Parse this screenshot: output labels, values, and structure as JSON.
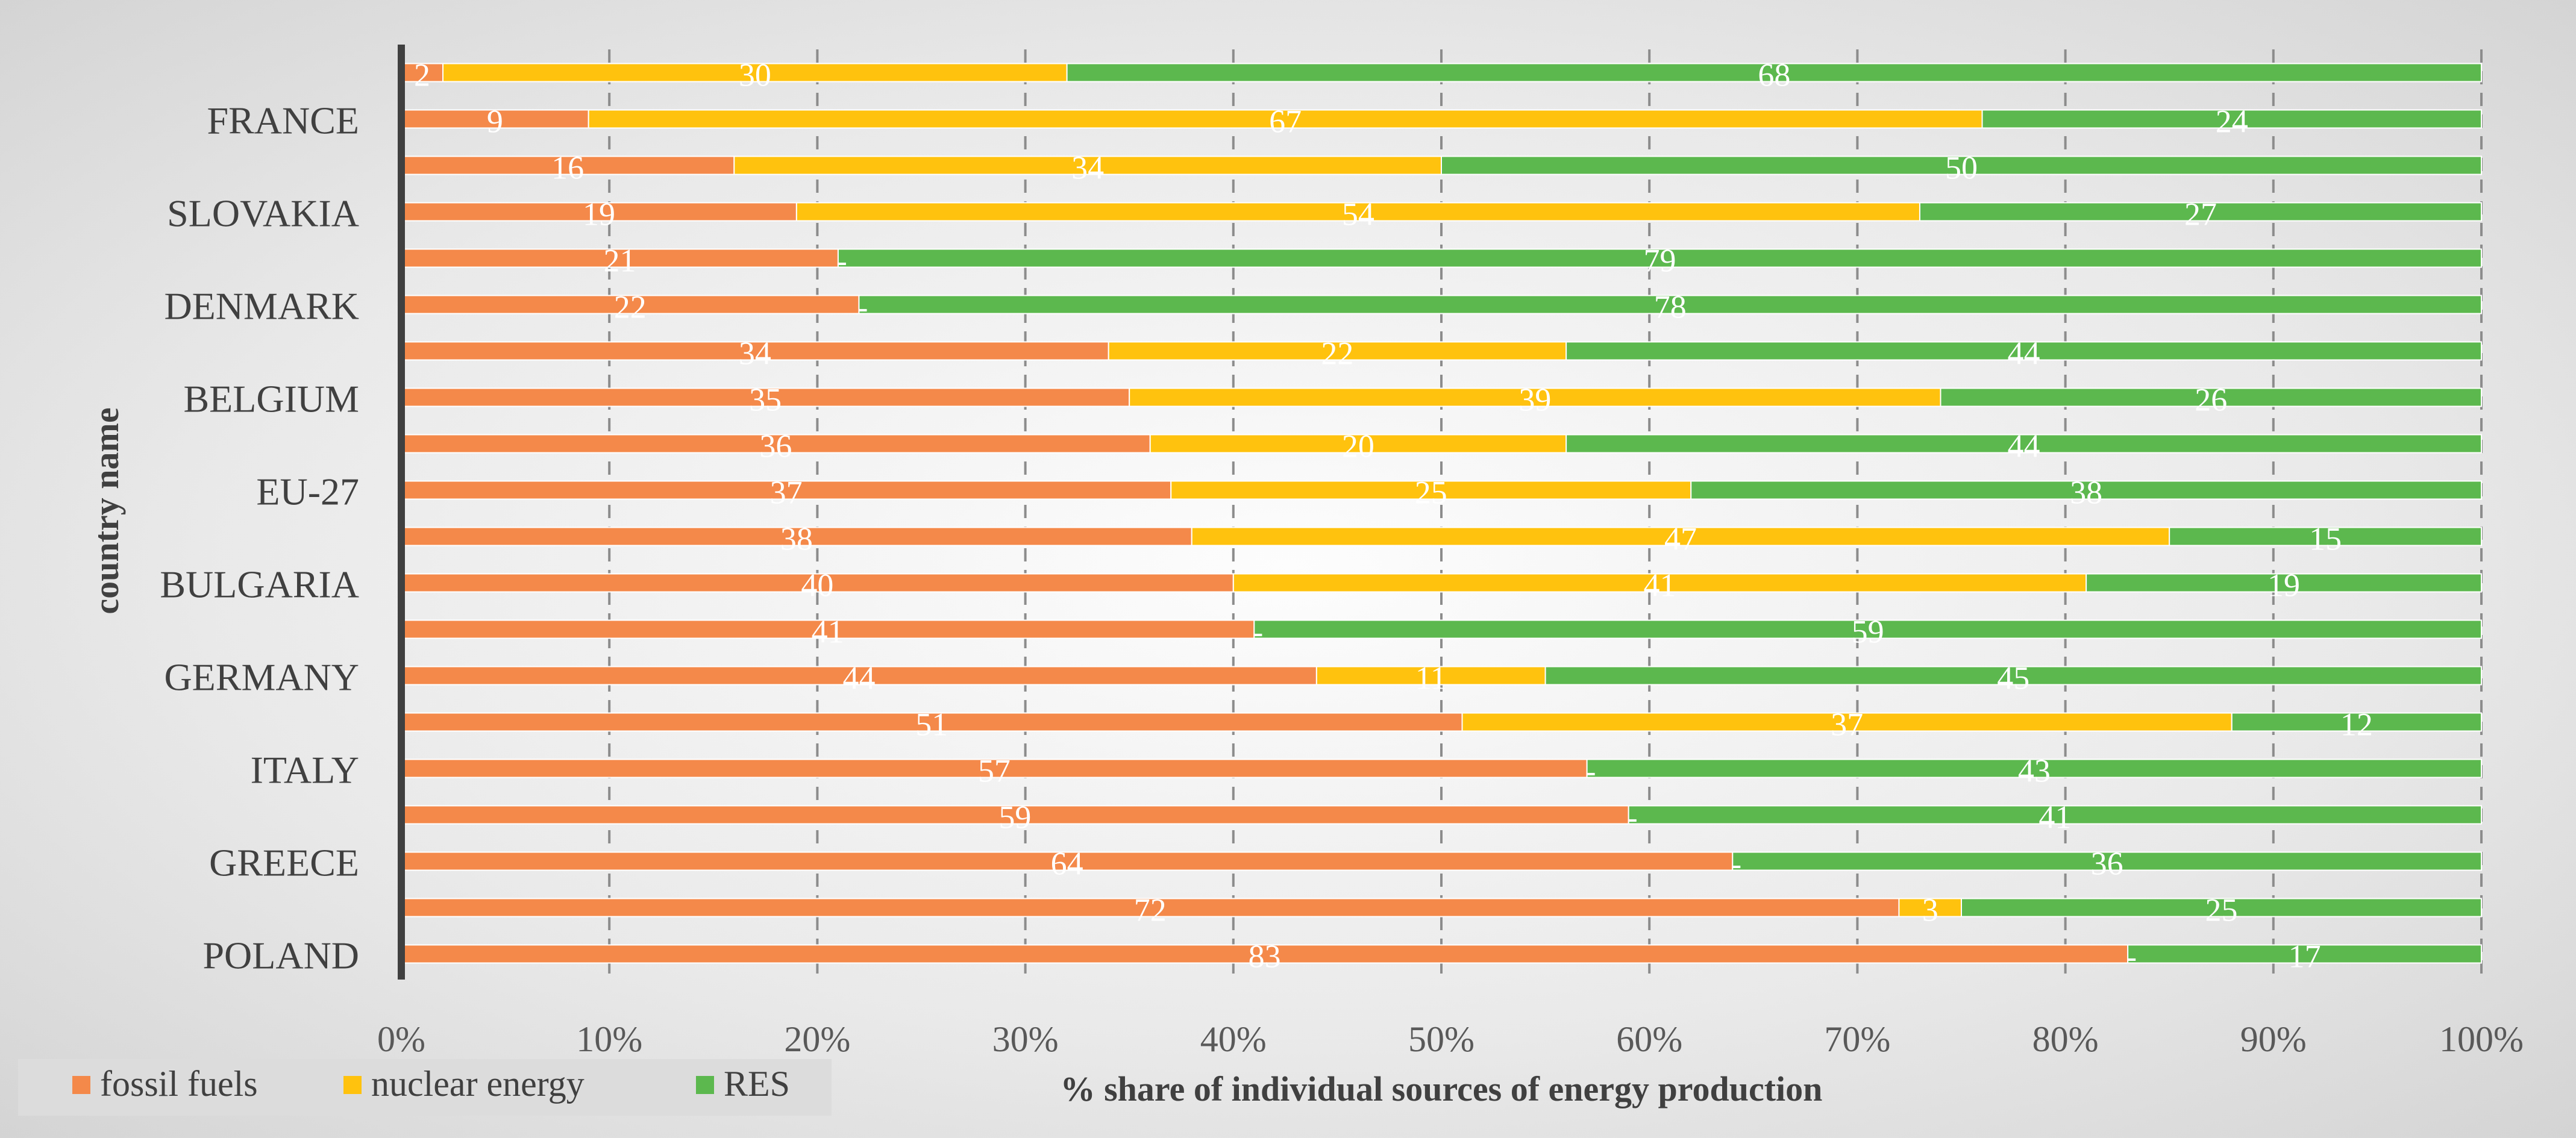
{
  "chart_data": {
    "type": "bar",
    "orientation": "horizontal",
    "stacked": "100%",
    "title": "",
    "xlabel": "% share of individual sources of energy production",
    "ylabel": "country name",
    "xlim": [
      0,
      100
    ],
    "x_ticks": [
      "0%",
      "10%",
      "20%",
      "30%",
      "40%",
      "50%",
      "60%",
      "70%",
      "80%",
      "90%",
      "100%"
    ],
    "visible_category_labels": [
      "FRANCE",
      "SLOVAKIA",
      "DENMARK",
      "BELGIUM",
      "EU-27",
      "BULGARIA",
      "GERMANY",
      "ITALY",
      "GREECE",
      "POLAND"
    ],
    "rows": [
      {
        "label": "",
        "values": [
          2,
          30,
          68
        ],
        "labels": [
          "2",
          "30",
          "68"
        ]
      },
      {
        "label": "FRANCE",
        "values": [
          9,
          67,
          24
        ],
        "labels": [
          "9",
          "67",
          "24"
        ]
      },
      {
        "label": "",
        "values": [
          16,
          34,
          50
        ],
        "labels": [
          "16",
          "34",
          "50"
        ]
      },
      {
        "label": "SLOVAKIA",
        "values": [
          19,
          54,
          27
        ],
        "labels": [
          "19",
          "54",
          "27"
        ]
      },
      {
        "label": "",
        "values": [
          21,
          0,
          79
        ],
        "labels": [
          "21",
          "-",
          "79"
        ]
      },
      {
        "label": "DENMARK",
        "values": [
          22,
          0,
          78
        ],
        "labels": [
          "22",
          "-",
          "78"
        ]
      },
      {
        "label": "",
        "values": [
          34,
          22,
          44
        ],
        "labels": [
          "34",
          "22",
          "44"
        ]
      },
      {
        "label": "BELGIUM",
        "values": [
          35,
          39,
          26
        ],
        "labels": [
          "35",
          "39",
          "26"
        ]
      },
      {
        "label": "",
        "values": [
          36,
          20,
          44
        ],
        "labels": [
          "36",
          "20",
          "44"
        ]
      },
      {
        "label": "EU-27",
        "values": [
          37,
          25,
          38
        ],
        "labels": [
          "37",
          "25",
          "38"
        ]
      },
      {
        "label": "",
        "values": [
          38,
          47,
          15
        ],
        "labels": [
          "38",
          "47",
          "15"
        ]
      },
      {
        "label": "BULGARIA",
        "values": [
          40,
          41,
          19
        ],
        "labels": [
          "40",
          "41",
          "19"
        ]
      },
      {
        "label": "",
        "values": [
          41,
          0,
          59
        ],
        "labels": [
          "41",
          "-",
          "59"
        ]
      },
      {
        "label": "GERMANY",
        "values": [
          44,
          11,
          45
        ],
        "labels": [
          "44",
          "11",
          "45"
        ]
      },
      {
        "label": "",
        "values": [
          51,
          37,
          12
        ],
        "labels": [
          "51",
          "37",
          "12"
        ]
      },
      {
        "label": "ITALY",
        "values": [
          57,
          0,
          43
        ],
        "labels": [
          "57",
          "-",
          "43"
        ]
      },
      {
        "label": "",
        "values": [
          59,
          0,
          41
        ],
        "labels": [
          "59",
          "-",
          "41"
        ]
      },
      {
        "label": "GREECE",
        "values": [
          64,
          0,
          36
        ],
        "labels": [
          "64",
          "-",
          "36"
        ]
      },
      {
        "label": "",
        "values": [
          72,
          3,
          25
        ],
        "labels": [
          "72",
          "3",
          "25"
        ]
      },
      {
        "label": "POLAND",
        "values": [
          83,
          0,
          17
        ],
        "labels": [
          "83",
          "-",
          "17"
        ]
      }
    ],
    "series": [
      {
        "name": "fossil fuels",
        "color": "#F4894A"
      },
      {
        "name": "nuclear energy",
        "color": "#FFC20E"
      },
      {
        "name": "RES",
        "color": "#5CB84E"
      }
    ],
    "legend": "bottom-left",
    "grid": "vertical dashed"
  }
}
